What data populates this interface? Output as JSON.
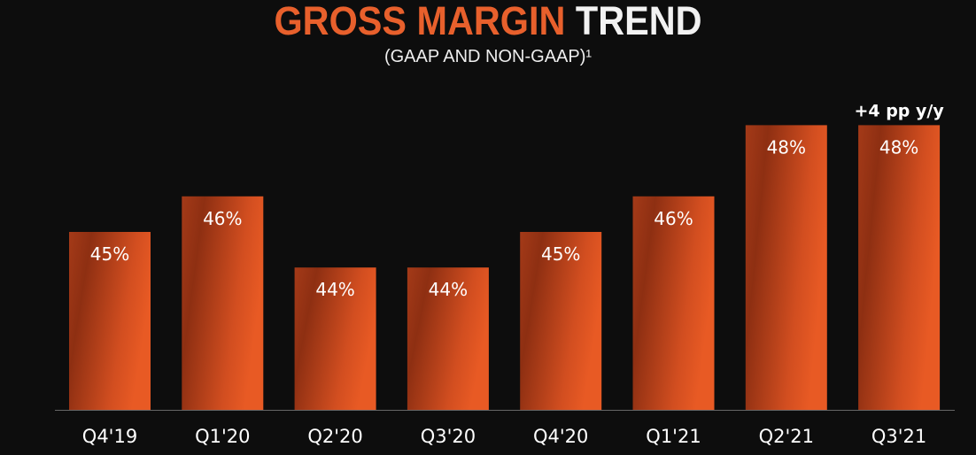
{
  "title": {
    "part1": "GROSS MARGIN",
    "part2": "TREND"
  },
  "subtitle": "(GAAP AND NON-GAAP)¹",
  "colors": {
    "accent": "#e8602c",
    "bar_dark": "#8e2f12",
    "bar_light": "#e85a24",
    "background": "#0d0d0d"
  },
  "chart_data": {
    "type": "bar",
    "title": "GROSS MARGIN TREND",
    "subtitle": "(GAAP AND NON-GAAP)¹",
    "categories": [
      "Q4'19",
      "Q1'20",
      "Q2'20",
      "Q3'20",
      "Q4'20",
      "Q1'21",
      "Q2'21",
      "Q3'21"
    ],
    "values": [
      45,
      46,
      44,
      44,
      45,
      46,
      48,
      48
    ],
    "data_labels": [
      "45%",
      "46%",
      "44%",
      "44%",
      "45%",
      "46%",
      "48%",
      "48%"
    ],
    "annotations": [
      {
        "category": "Q3'21",
        "text": "+4 pp y/y"
      }
    ],
    "xlabel": "",
    "ylabel": "",
    "ylim": [
      40,
      50
    ],
    "grid": false
  }
}
